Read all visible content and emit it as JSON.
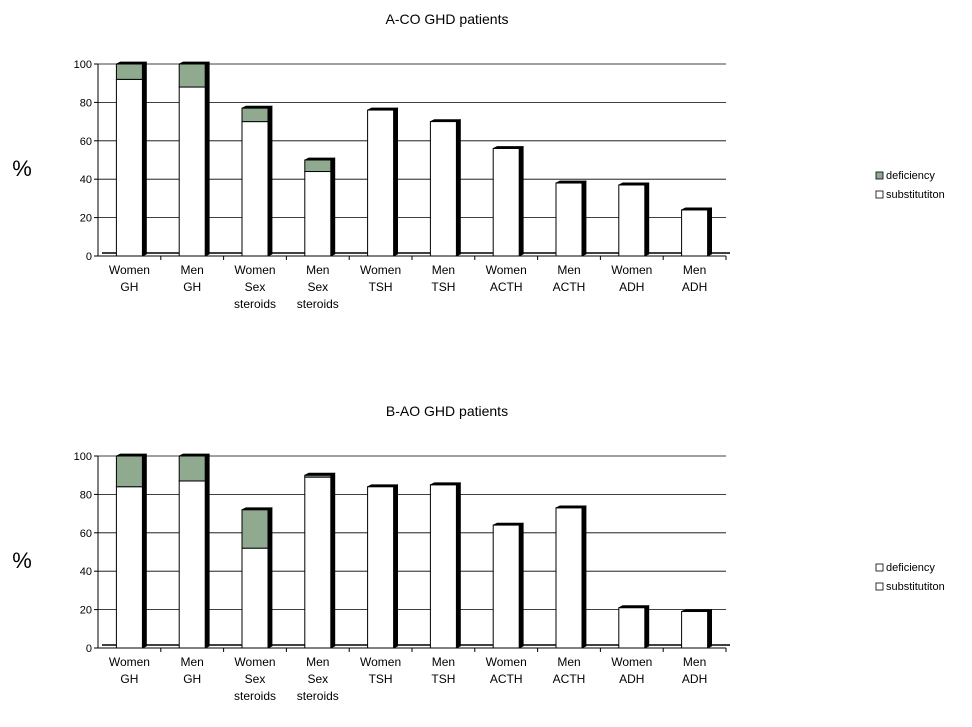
{
  "colors": {
    "deficiency_a": "#8faa8f",
    "deficiency_b": "#ffffff",
    "substitution": "#ffffff",
    "outline": "#000000",
    "gridline": "#000000"
  },
  "chart_data": [
    {
      "type": "bar",
      "stacked": true,
      "title": "A-CO GHD patients",
      "ylabel": "%",
      "ylim": [
        0,
        100
      ],
      "yticks": [
        0,
        20,
        40,
        60,
        80,
        100
      ],
      "grid": true,
      "legend_position": "right",
      "categories": [
        [
          "Women",
          "GH"
        ],
        [
          "Men",
          "GH"
        ],
        [
          "Women",
          "Sex",
          "steroids"
        ],
        [
          "Men",
          "Sex",
          "steroids"
        ],
        [
          "Women",
          "TSH"
        ],
        [
          "Men",
          "TSH"
        ],
        [
          "Women",
          "ACTH"
        ],
        [
          "Men",
          "ACTH"
        ],
        [
          "Women",
          "ADH"
        ],
        [
          "Men",
          "ADH"
        ]
      ],
      "series": [
        {
          "name": "substitutiton",
          "values": [
            92,
            88,
            70,
            44,
            76,
            70,
            56,
            38,
            37,
            24
          ]
        },
        {
          "name": "deficiency",
          "values": [
            8,
            12,
            7,
            6,
            0,
            0,
            0,
            0,
            0,
            0
          ]
        }
      ],
      "legend": [
        "deficiency",
        "substitutiton"
      ]
    },
    {
      "type": "bar",
      "stacked": true,
      "title": "B-AO GHD patients",
      "ylabel": "%",
      "ylim": [
        0,
        100
      ],
      "yticks": [
        0,
        20,
        40,
        60,
        80,
        100
      ],
      "grid": true,
      "legend_position": "right",
      "categories": [
        [
          "Women",
          "GH"
        ],
        [
          "Men",
          "GH"
        ],
        [
          "Women",
          "Sex",
          "steroids"
        ],
        [
          "Men",
          "Sex",
          "steroids"
        ],
        [
          "Women",
          "TSH"
        ],
        [
          "Men",
          "TSH"
        ],
        [
          "Women",
          "ACTH"
        ],
        [
          "Men",
          "ACTH"
        ],
        [
          "Women",
          "ADH"
        ],
        [
          "Men",
          "ADH"
        ]
      ],
      "series": [
        {
          "name": "substitutiton",
          "values": [
            84,
            87,
            52,
            89,
            84,
            85,
            64,
            73,
            21,
            19
          ]
        },
        {
          "name": "deficiency",
          "values": [
            16,
            13,
            20,
            1,
            0,
            0,
            0,
            0,
            0,
            0
          ]
        }
      ],
      "legend": [
        "deficiency",
        "substitutiton"
      ]
    }
  ]
}
